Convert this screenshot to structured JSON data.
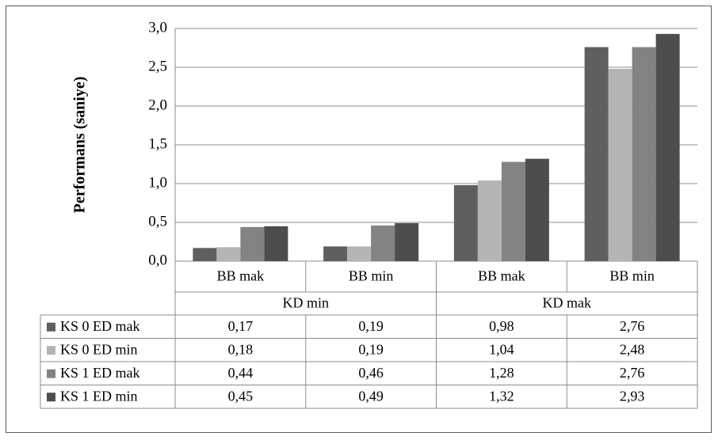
{
  "chart_data": {
    "type": "bar",
    "title": "",
    "xlabel": "",
    "ylabel": "Performans (saniye)",
    "ylim": [
      0,
      3.0
    ],
    "y_ticks": [
      "0,0",
      "0,5",
      "1,0",
      "1,5",
      "2,0",
      "2,5",
      "3,0"
    ],
    "y_tick_values": [
      0,
      0.5,
      1.0,
      1.5,
      2.0,
      2.5,
      3.0
    ],
    "grid": true,
    "legend": "data-table",
    "categories": [
      "BB mak",
      "BB min",
      "BB mak",
      "BB min"
    ],
    "category_groups": [
      {
        "label": "KD min",
        "span": 2
      },
      {
        "label": "KD mak",
        "span": 2
      }
    ],
    "series": [
      {
        "name": "KS 0 ED mak",
        "color": "#5f5f5f",
        "values": [
          0.17,
          0.19,
          0.98,
          2.76
        ],
        "labels": [
          "0,17",
          "0,19",
          "0,98",
          "2,76"
        ]
      },
      {
        "name": "KS 0 ED min",
        "color": "#b4b4b4",
        "values": [
          0.18,
          0.19,
          1.04,
          2.48
        ],
        "labels": [
          "0,18",
          "0,19",
          "1,04",
          "2,48"
        ]
      },
      {
        "name": "KS 1 ED mak",
        "color": "#838383",
        "values": [
          0.44,
          0.46,
          1.28,
          2.76
        ],
        "labels": [
          "0,44",
          "0,46",
          "1,28",
          "2,76"
        ]
      },
      {
        "name": "KS 1 ED min",
        "color": "#4d4d4d",
        "values": [
          0.45,
          0.49,
          1.32,
          2.93
        ],
        "labels": [
          "0,45",
          "0,49",
          "1,32",
          "2,93"
        ]
      }
    ]
  }
}
